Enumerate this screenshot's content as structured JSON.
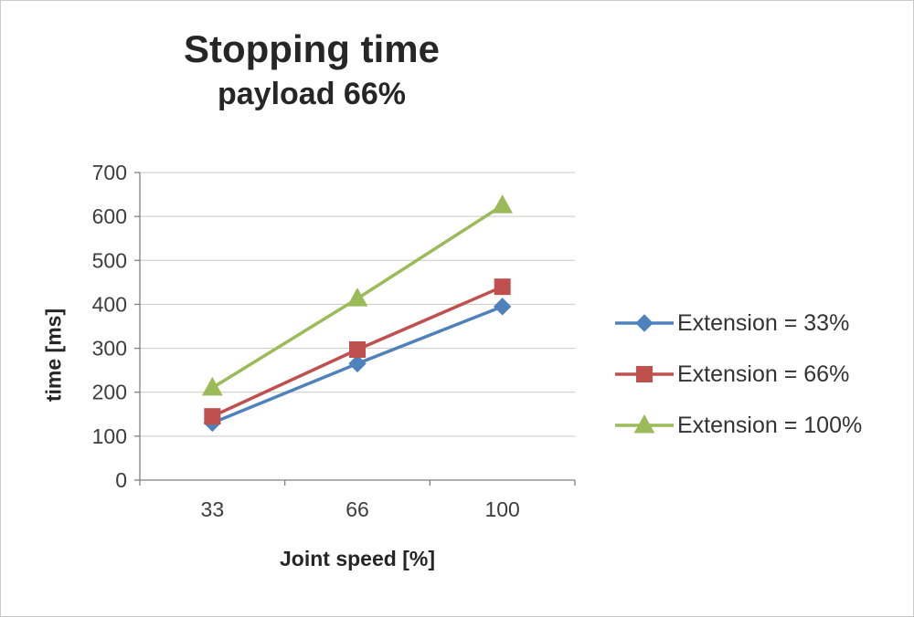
{
  "chart_data": {
    "type": "line",
    "title": "Stopping time",
    "subtitle": "payload 66%",
    "xlabel": "Joint speed [%]",
    "ylabel": "time [ms]",
    "categories": [
      "33",
      "66",
      "100"
    ],
    "series": [
      {
        "name": "Extension = 33%",
        "values": [
          130,
          265,
          395
        ],
        "color": "#4f81bd",
        "marker": "diamond"
      },
      {
        "name": "Extension = 66%",
        "values": [
          145,
          297,
          440
        ],
        "color": "#c0504d",
        "marker": "square"
      },
      {
        "name": "Extension = 100%",
        "values": [
          210,
          413,
          625
        ],
        "color": "#9bbb59",
        "marker": "triangle"
      }
    ],
    "ylim": [
      0,
      700
    ],
    "ytick_step": 100,
    "grid": true,
    "legend_position": "right",
    "colors": {
      "gridline": "#c9c9c9",
      "axis": "#808080",
      "tick_label": "#3d3d3d"
    }
  }
}
